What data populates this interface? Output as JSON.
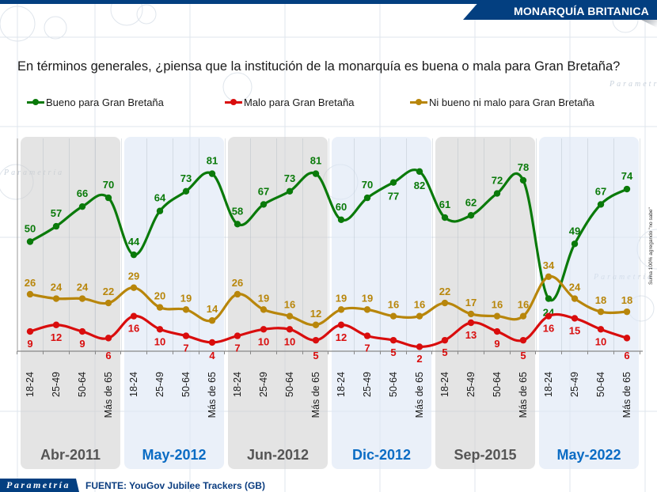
{
  "header": {
    "title": "MONARQUÍA BRITANICA"
  },
  "question": "En términos generales, ¿piensa que la institución de la monarquía es buena o mala para Gran Bretaña?",
  "side_note": "Suma 100% agregando \"no sabe\"",
  "footer": {
    "logo": "Parametría",
    "source": "FUENTE: YouGov Jubilee Trackers (GB)"
  },
  "watermark": "Parametría",
  "colors": {
    "green": "#0a7a0a",
    "red": "#d90d0d",
    "gold": "#b8860b",
    "header_blue": "#033f80",
    "label_blue": "#0b6cc4",
    "label_gray": "#555555"
  },
  "chart_data": {
    "type": "line",
    "title": "En términos generales, ¿piensa que la institución de la monarquía es buena o mala para Gran Bretaña?",
    "xlabel": "",
    "ylabel": "",
    "ylim": [
      0,
      100
    ],
    "grid": true,
    "legend_position": "top",
    "groups": [
      {
        "label": "Abr-2011",
        "style": "gray"
      },
      {
        "label": "May-2012",
        "style": "blue"
      },
      {
        "label": "Jun-2012",
        "style": "gray"
      },
      {
        "label": "Dic-2012",
        "style": "blue"
      },
      {
        "label": "Sep-2015",
        "style": "gray"
      },
      {
        "label": "May-2022",
        "style": "blue"
      }
    ],
    "age_categories": [
      "18-24",
      "25-49",
      "50-64",
      "Más de 65"
    ],
    "series": [
      {
        "name": "Bueno para Gran Bretaña",
        "color": "#0a7a0a",
        "values": [
          50,
          57,
          66,
          70,
          44,
          64,
          73,
          81,
          58,
          67,
          73,
          81,
          60,
          70,
          77,
          82,
          61,
          62,
          72,
          78,
          24,
          49,
          67,
          74
        ]
      },
      {
        "name": "Malo para Gran Bretaña",
        "color": "#d90d0d",
        "values": [
          9,
          12,
          9,
          6,
          16,
          10,
          7,
          4,
          7,
          10,
          10,
          5,
          12,
          7,
          5,
          2,
          5,
          13,
          9,
          5,
          16,
          15,
          10,
          6
        ]
      },
      {
        "name": "Ni bueno ni malo para Gran Bretaña",
        "color": "#b8860b",
        "values": [
          26,
          24,
          24,
          22,
          29,
          20,
          19,
          14,
          26,
          19,
          16,
          12,
          19,
          19,
          16,
          16,
          22,
          17,
          16,
          16,
          34,
          24,
          18,
          18
        ]
      }
    ]
  }
}
